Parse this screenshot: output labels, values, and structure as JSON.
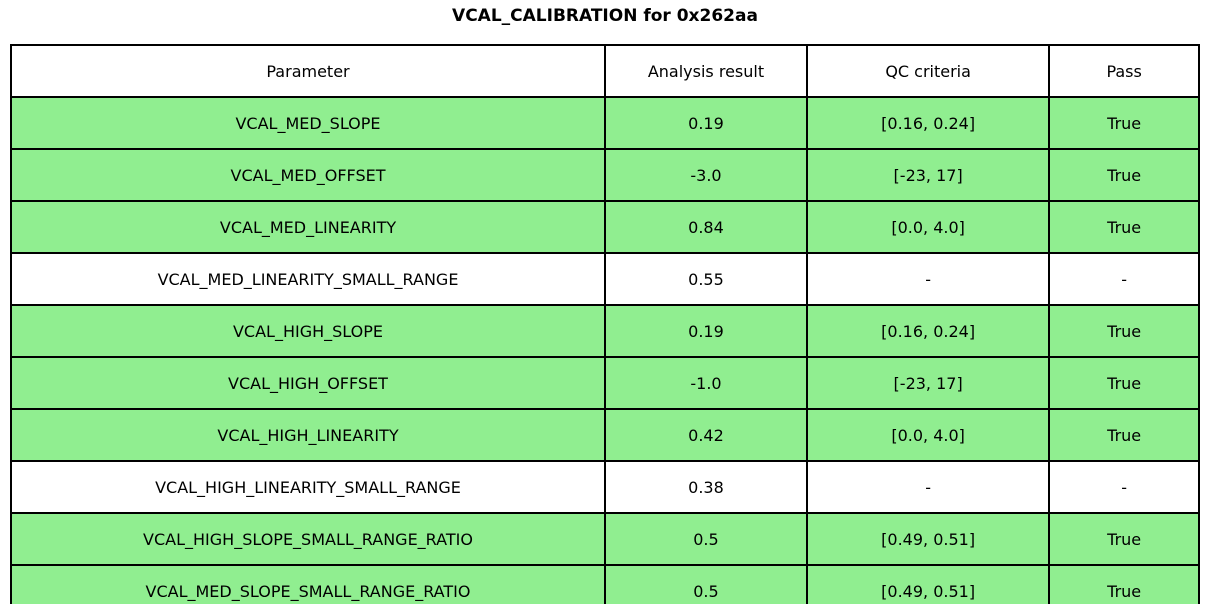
{
  "title": "VCAL_CALIBRATION for 0x262aa",
  "colors": {
    "pass_row_green": "#90EE90",
    "plain_row_white": "#FFFFFF",
    "border_black": "#000000"
  },
  "table": {
    "headers": [
      "Parameter",
      "Analysis result",
      "QC criteria",
      "Pass"
    ],
    "rows": [
      {
        "parameter": "VCAL_MED_SLOPE",
        "result": "0.19",
        "criteria": "[0.16, 0.24]",
        "pass": "True",
        "highlighted": true
      },
      {
        "parameter": "VCAL_MED_OFFSET",
        "result": "-3.0",
        "criteria": "[-23, 17]",
        "pass": "True",
        "highlighted": true
      },
      {
        "parameter": "VCAL_MED_LINEARITY",
        "result": "0.84",
        "criteria": "[0.0, 4.0]",
        "pass": "True",
        "highlighted": true
      },
      {
        "parameter": "VCAL_MED_LINEARITY_SMALL_RANGE",
        "result": "0.55",
        "criteria": "-",
        "pass": "-",
        "highlighted": false
      },
      {
        "parameter": "VCAL_HIGH_SLOPE",
        "result": "0.19",
        "criteria": "[0.16, 0.24]",
        "pass": "True",
        "highlighted": true
      },
      {
        "parameter": "VCAL_HIGH_OFFSET",
        "result": "-1.0",
        "criteria": "[-23, 17]",
        "pass": "True",
        "highlighted": true
      },
      {
        "parameter": "VCAL_HIGH_LINEARITY",
        "result": "0.42",
        "criteria": "[0.0, 4.0]",
        "pass": "True",
        "highlighted": true
      },
      {
        "parameter": "VCAL_HIGH_LINEARITY_SMALL_RANGE",
        "result": "0.38",
        "criteria": "-",
        "pass": "-",
        "highlighted": false
      },
      {
        "parameter": "VCAL_HIGH_SLOPE_SMALL_RANGE_RATIO",
        "result": "0.5",
        "criteria": "[0.49, 0.51]",
        "pass": "True",
        "highlighted": true
      },
      {
        "parameter": "VCAL_MED_SLOPE_SMALL_RANGE_RATIO",
        "result": "0.5",
        "criteria": "[0.49, 0.51]",
        "pass": "True",
        "highlighted": true
      }
    ]
  },
  "chart_data": {
    "type": "table",
    "title": "VCAL_CALIBRATION for 0x262aa",
    "columns": [
      "Parameter",
      "Analysis result",
      "QC criteria",
      "Pass"
    ],
    "cells": [
      [
        "VCAL_MED_SLOPE",
        "0.19",
        "[0.16, 0.24]",
        "True"
      ],
      [
        "VCAL_MED_OFFSET",
        "-3.0",
        "[-23, 17]",
        "True"
      ],
      [
        "VCAL_MED_LINEARITY",
        "0.84",
        "[0.0, 4.0]",
        "True"
      ],
      [
        "VCAL_MED_LINEARITY_SMALL_RANGE",
        "0.55",
        "-",
        "-"
      ],
      [
        "VCAL_HIGH_SLOPE",
        "0.19",
        "[0.16, 0.24]",
        "True"
      ],
      [
        "VCAL_HIGH_OFFSET",
        "-1.0",
        "[-23, 17]",
        "True"
      ],
      [
        "VCAL_HIGH_LINEARITY",
        "0.42",
        "[0.0, 4.0]",
        "True"
      ],
      [
        "VCAL_HIGH_LINEARITY_SMALL_RANGE",
        "0.38",
        "-",
        "-"
      ],
      [
        "VCAL_HIGH_SLOPE_SMALL_RANGE_RATIO",
        "0.5",
        "[0.49, 0.51]",
        "True"
      ],
      [
        "VCAL_MED_SLOPE_SMALL_RANGE_RATIO",
        "0.5",
        "[0.49, 0.51]",
        "True"
      ]
    ],
    "row_highlight_color": "#90EE90",
    "legend_position": "none",
    "grid": true
  }
}
